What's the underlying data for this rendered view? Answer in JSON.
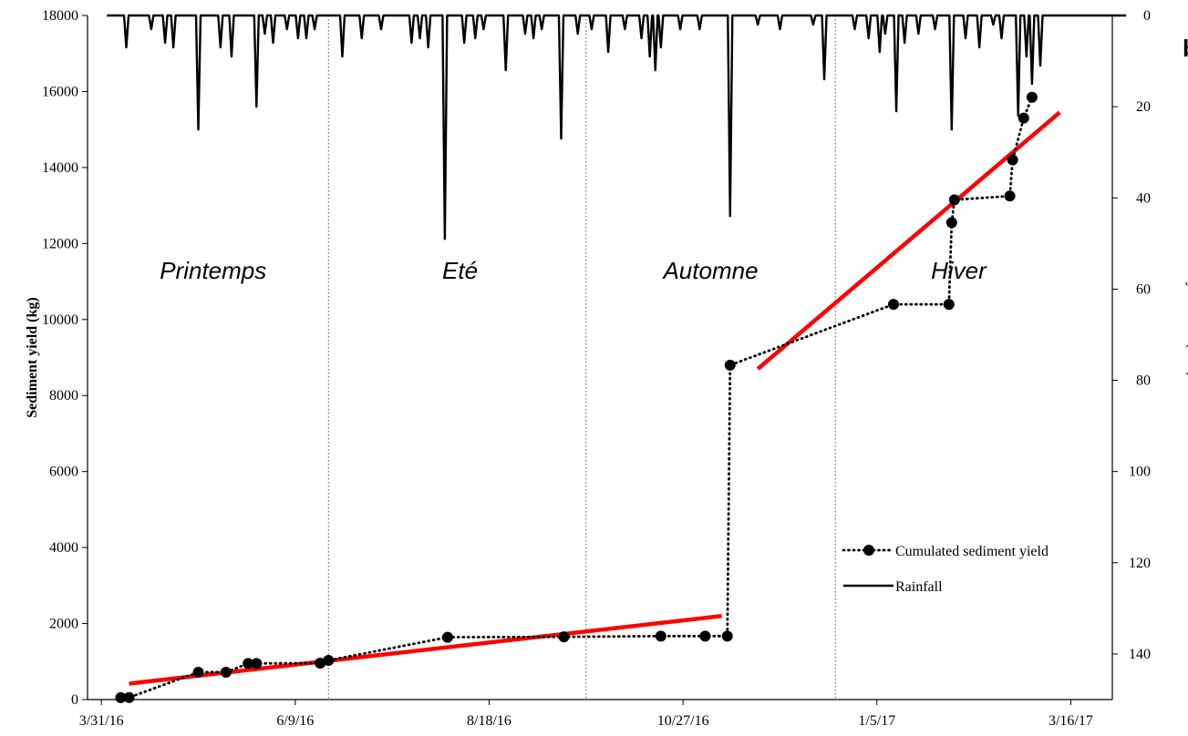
{
  "chart_data": {
    "type": "line",
    "xlabel": "",
    "ylabel": "Sediment yield (kg)",
    "y2label": "Daily rainfall (mm)",
    "x_tick_labels": [
      "3/31/16",
      "6/9/16",
      "8/18/16",
      "10/27/16",
      "1/5/17",
      "3/16/17"
    ],
    "ylim": [
      0,
      18000
    ],
    "y_ticks": [
      0,
      2000,
      4000,
      6000,
      8000,
      10000,
      12000,
      14000,
      16000,
      18000
    ],
    "y2lim": [
      0,
      150
    ],
    "y2_inverted": true,
    "y2_ticks": [
      0,
      20,
      40,
      60,
      80,
      100,
      120,
      140
    ],
    "corner_label": "b",
    "season_boundaries": [
      "2016-06-21",
      "2016-09-22",
      "2016-12-21"
    ],
    "seasons": [
      "Printemps",
      "Eté",
      "Automne",
      "Hiver"
    ],
    "legend_position": "lower-right",
    "series": [
      {
        "name": "Cumulated sediment yield",
        "style": "dotted-with-markers",
        "color": "#000000",
        "points": [
          {
            "x": "2016-04-07",
            "y": 50
          },
          {
            "x": "2016-04-10",
            "y": 55
          },
          {
            "x": "2016-05-05",
            "y": 720
          },
          {
            "x": "2016-05-15",
            "y": 720
          },
          {
            "x": "2016-05-23",
            "y": 950
          },
          {
            "x": "2016-05-26",
            "y": 950
          },
          {
            "x": "2016-06-18",
            "y": 960
          },
          {
            "x": "2016-06-21",
            "y": 1030
          },
          {
            "x": "2016-08-03",
            "y": 1640
          },
          {
            "x": "2016-09-14",
            "y": 1650
          },
          {
            "x": "2016-10-19",
            "y": 1670
          },
          {
            "x": "2016-11-04",
            "y": 1670
          },
          {
            "x": "2016-11-12",
            "y": 1670
          },
          {
            "x": "2016-11-13",
            "y": 8800
          },
          {
            "x": "2017-01-11",
            "y": 10400
          },
          {
            "x": "2017-01-31",
            "y": 10400
          },
          {
            "x": "2017-02-01",
            "y": 12550
          },
          {
            "x": "2017-02-02",
            "y": 13150
          },
          {
            "x": "2017-02-22",
            "y": 13250
          },
          {
            "x": "2017-02-23",
            "y": 14200
          },
          {
            "x": "2017-02-27",
            "y": 15300
          },
          {
            "x": "2017-03-02",
            "y": 15850
          }
        ]
      },
      {
        "name": "Rainfall",
        "style": "solid",
        "axis": "right",
        "color": "#000000",
        "spikes": [
          {
            "x": "2016-04-09",
            "y": 7
          },
          {
            "x": "2016-04-18",
            "y": 3
          },
          {
            "x": "2016-04-23",
            "y": 6
          },
          {
            "x": "2016-04-26",
            "y": 7
          },
          {
            "x": "2016-05-05",
            "y": 25
          },
          {
            "x": "2016-05-13",
            "y": 7
          },
          {
            "x": "2016-05-17",
            "y": 9
          },
          {
            "x": "2016-05-26",
            "y": 20
          },
          {
            "x": "2016-05-29",
            "y": 4
          },
          {
            "x": "2016-06-01",
            "y": 6
          },
          {
            "x": "2016-06-06",
            "y": 3
          },
          {
            "x": "2016-06-10",
            "y": 5
          },
          {
            "x": "2016-06-13",
            "y": 5
          },
          {
            "x": "2016-06-16",
            "y": 3
          },
          {
            "x": "2016-06-26",
            "y": 9
          },
          {
            "x": "2016-07-03",
            "y": 5
          },
          {
            "x": "2016-07-10",
            "y": 3
          },
          {
            "x": "2016-07-21",
            "y": 6
          },
          {
            "x": "2016-07-24",
            "y": 5
          },
          {
            "x": "2016-07-27",
            "y": 7
          },
          {
            "x": "2016-08-02",
            "y": 49
          },
          {
            "x": "2016-08-09",
            "y": 6
          },
          {
            "x": "2016-08-13",
            "y": 5
          },
          {
            "x": "2016-08-16",
            "y": 3
          },
          {
            "x": "2016-08-24",
            "y": 12
          },
          {
            "x": "2016-08-31",
            "y": 4
          },
          {
            "x": "2016-09-03",
            "y": 5
          },
          {
            "x": "2016-09-06",
            "y": 3
          },
          {
            "x": "2016-09-13",
            "y": 27
          },
          {
            "x": "2016-09-19",
            "y": 4
          },
          {
            "x": "2016-09-24",
            "y": 3
          },
          {
            "x": "2016-09-30",
            "y": 8
          },
          {
            "x": "2016-10-06",
            "y": 3
          },
          {
            "x": "2016-10-12",
            "y": 5
          },
          {
            "x": "2016-10-15",
            "y": 9
          },
          {
            "x": "2016-10-17",
            "y": 12
          },
          {
            "x": "2016-10-19",
            "y": 7
          },
          {
            "x": "2016-10-26",
            "y": 3
          },
          {
            "x": "2016-11-02",
            "y": 3
          },
          {
            "x": "2016-11-13",
            "y": 44
          },
          {
            "x": "2016-11-23",
            "y": 2
          },
          {
            "x": "2016-12-01",
            "y": 3
          },
          {
            "x": "2016-12-13",
            "y": 2
          },
          {
            "x": "2016-12-17",
            "y": 14
          },
          {
            "x": "2016-12-28",
            "y": 3
          },
          {
            "x": "2017-01-02",
            "y": 5
          },
          {
            "x": "2017-01-06",
            "y": 8
          },
          {
            "x": "2017-01-08",
            "y": 4
          },
          {
            "x": "2017-01-12",
            "y": 21
          },
          {
            "x": "2017-01-15",
            "y": 6
          },
          {
            "x": "2017-01-20",
            "y": 4
          },
          {
            "x": "2017-01-26",
            "y": 3
          },
          {
            "x": "2017-02-01",
            "y": 25
          },
          {
            "x": "2017-02-06",
            "y": 5
          },
          {
            "x": "2017-02-11",
            "y": 7
          },
          {
            "x": "2017-02-16",
            "y": 2
          },
          {
            "x": "2017-02-19",
            "y": 5
          },
          {
            "x": "2017-02-25",
            "y": 22
          },
          {
            "x": "2017-02-28",
            "y": 9
          },
          {
            "x": "2017-03-02",
            "y": 15
          },
          {
            "x": "2017-03-05",
            "y": 11
          }
        ]
      },
      {
        "name": "",
        "style": "solid-thick",
        "color": "#ff0000",
        "points": [
          {
            "x": "2016-04-10",
            "y": 420
          },
          {
            "x": "2016-11-10",
            "y": 2200
          }
        ]
      },
      {
        "name": "",
        "style": "solid-thick",
        "color": "#ff0000",
        "points": [
          {
            "x": "2016-11-23",
            "y": 8700
          },
          {
            "x": "2017-03-12",
            "y": 15450
          }
        ]
      }
    ]
  }
}
